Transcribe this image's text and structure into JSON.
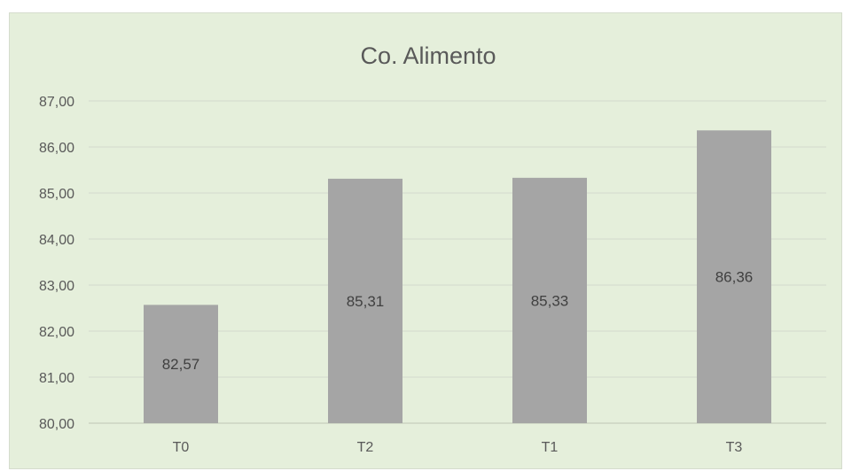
{
  "chart_data": {
    "type": "bar",
    "title": "Co. Alimento",
    "xlabel": "",
    "ylabel": "",
    "categories": [
      "T0",
      "T2",
      "T1",
      "T3"
    ],
    "values": [
      82.57,
      85.31,
      85.33,
      86.36
    ],
    "data_labels": [
      "82,57",
      "85,31",
      "85,33",
      "86,36"
    ],
    "ylim": [
      80,
      87
    ],
    "yticks": [
      80,
      81,
      82,
      83,
      84,
      85,
      86,
      87
    ],
    "ytick_labels": [
      "80,00",
      "81,00",
      "82,00",
      "83,00",
      "84,00",
      "85,00",
      "86,00",
      "87,00"
    ],
    "grid": true,
    "legend": "none",
    "colors": {
      "bar": "#a5a5a5",
      "background": "#e5efdb"
    }
  }
}
